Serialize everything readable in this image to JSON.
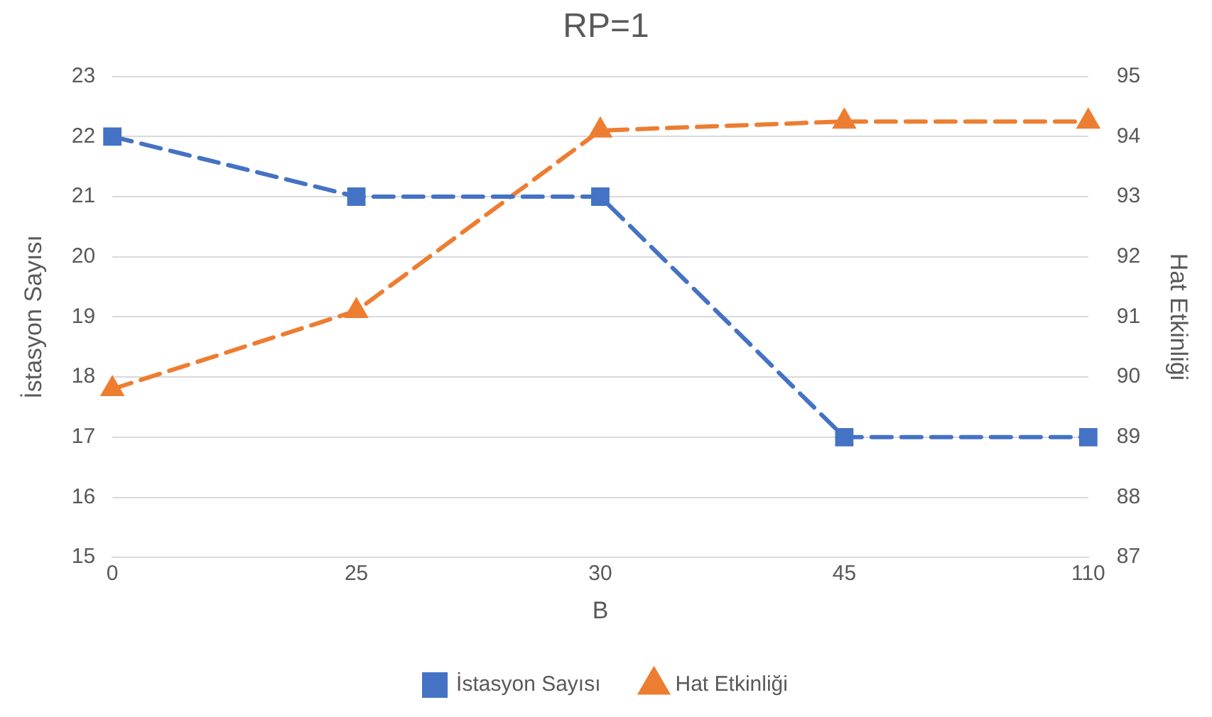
{
  "chart_data": {
    "type": "line",
    "title": "RP=1",
    "xlabel": "B",
    "ylabel": "İstasyon Sayısı",
    "y2label": "Hat Etkinliği",
    "categories": [
      "0",
      "25",
      "30",
      "45",
      "110"
    ],
    "series": [
      {
        "name": "İstasyon Sayısı",
        "color": "#4472c4",
        "values": [
          22,
          21,
          21,
          17,
          17
        ],
        "marker": "square"
      },
      {
        "name": "Hat Etkinliği",
        "color": "#ed7d31",
        "values": [
          89.8,
          91.1,
          94.1,
          94.25,
          94.25
        ],
        "axis": "y2",
        "marker": "triangle"
      }
    ],
    "ylim": [
      15,
      23
    ],
    "yticks": [
      15,
      16,
      17,
      18,
      19,
      20,
      21,
      22,
      23
    ],
    "y2lim": [
      87,
      95
    ],
    "y2ticks": [
      87,
      88,
      89,
      90,
      91,
      92,
      93,
      94,
      95
    ],
    "grid": "y",
    "legend": "bottom",
    "line_style": "dashed"
  }
}
